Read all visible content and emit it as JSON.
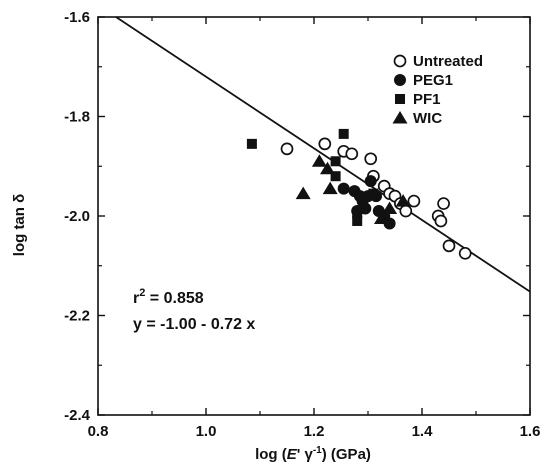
{
  "chart_data": {
    "type": "scatter",
    "title": "",
    "xlabel": "log (E' γ⁻¹) (GPa)",
    "xlabel_parts": {
      "prefix": "log (",
      "var": "E",
      "mid": "' γ",
      "sup": "-1",
      "suffix": ") (GPa)"
    },
    "ylabel": "log tan δ",
    "xlim": [
      0.8,
      1.6
    ],
    "ylim": [
      -2.4,
      -1.6
    ],
    "x_ticks": [
      0.8,
      1.0,
      1.2,
      1.4,
      1.6
    ],
    "x_tick_labels": [
      "0.8",
      "1.0",
      "1.2",
      "1.4",
      "1.6"
    ],
    "y_ticks": [
      -2.4,
      -2.2,
      -2.0,
      -1.8,
      -1.6
    ],
    "y_tick_labels": [
      "-2.4",
      "-2.2",
      "-2.0",
      "-1.8",
      "-1.6"
    ],
    "grid": false,
    "legend_position": "top-right",
    "series": [
      {
        "name": "Untreated",
        "marker": "open-circle",
        "points": [
          [
            1.15,
            -1.865
          ],
          [
            1.22,
            -1.855
          ],
          [
            1.255,
            -1.87
          ],
          [
            1.27,
            -1.875
          ],
          [
            1.305,
            -1.885
          ],
          [
            1.31,
            -1.92
          ],
          [
            1.33,
            -1.94
          ],
          [
            1.34,
            -1.955
          ],
          [
            1.35,
            -1.96
          ],
          [
            1.36,
            -1.975
          ],
          [
            1.37,
            -1.99
          ],
          [
            1.385,
            -1.97
          ],
          [
            1.43,
            -2.0
          ],
          [
            1.435,
            -2.01
          ],
          [
            1.44,
            -1.975
          ],
          [
            1.45,
            -2.06
          ],
          [
            1.48,
            -2.075
          ]
        ]
      },
      {
        "name": "PEG1",
        "marker": "filled-circle",
        "points": [
          [
            1.255,
            -1.945
          ],
          [
            1.275,
            -1.95
          ],
          [
            1.285,
            -1.96
          ],
          [
            1.29,
            -1.97
          ],
          [
            1.295,
            -1.985
          ],
          [
            1.3,
            -1.96
          ],
          [
            1.305,
            -1.93
          ],
          [
            1.315,
            -1.96
          ],
          [
            1.32,
            -1.99
          ],
          [
            1.33,
            -2.0
          ],
          [
            1.34,
            -2.015
          ],
          [
            1.28,
            -1.99
          ]
        ]
      },
      {
        "name": "PF1",
        "marker": "filled-square",
        "points": [
          [
            1.085,
            -1.855
          ],
          [
            1.255,
            -1.835
          ],
          [
            1.24,
            -1.89
          ],
          [
            1.24,
            -1.92
          ],
          [
            1.28,
            -1.995
          ],
          [
            1.28,
            -2.01
          ],
          [
            1.31,
            -1.955
          ]
        ]
      },
      {
        "name": "WIC",
        "marker": "filled-triangle",
        "points": [
          [
            1.18,
            -1.955
          ],
          [
            1.21,
            -1.89
          ],
          [
            1.225,
            -1.905
          ],
          [
            1.23,
            -1.945
          ],
          [
            1.325,
            -2.005
          ],
          [
            1.34,
            -1.985
          ],
          [
            1.365,
            -1.97
          ]
        ]
      }
    ],
    "fit_line": {
      "intercept": -1.0,
      "slope": -0.72
    },
    "annotations": {
      "r2_prefix": "r",
      "r2_sup": "2",
      "r2_value": " = 0.858",
      "equation": "y = -1.00 - 0.72 x"
    }
  }
}
